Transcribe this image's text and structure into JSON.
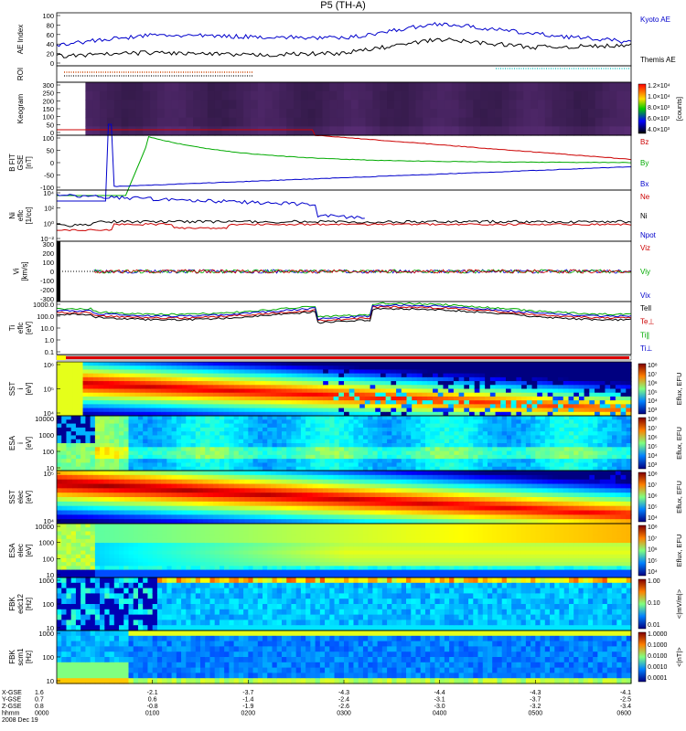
{
  "title": "P5 (TH-A)",
  "panels": [
    {
      "id": "ae",
      "ylabel": [
        "AE Index"
      ],
      "yticks": [
        "100",
        "80",
        "60",
        "40",
        "20",
        "0"
      ],
      "legend": [
        {
          "text": "Kyoto AE",
          "color": "#0000cc"
        },
        {
          "text": "Themis AE",
          "color": "#000000"
        }
      ]
    },
    {
      "id": "roi",
      "ylabel": [
        "ROI"
      ],
      "yticks": [],
      "legend": []
    },
    {
      "id": "keogram",
      "ylabel": [
        "Keogram"
      ],
      "yticks": [
        "300",
        "250",
        "200",
        "150",
        "100",
        "50",
        "0"
      ],
      "legend": []
    },
    {
      "id": "bfield",
      "ylabel": [
        "B FIT",
        "GSE",
        "[nT]"
      ],
      "yticks": [
        "100",
        "50",
        "0",
        "-50",
        "-100"
      ],
      "legend": [
        {
          "text": "Bz",
          "color": "#cc0000"
        },
        {
          "text": "By",
          "color": "#00aa00"
        },
        {
          "text": "Bx",
          "color": "#0000cc"
        }
      ]
    },
    {
      "id": "density",
      "ylabel": [
        "Ni",
        "eflc",
        "[1/cc]"
      ],
      "yticks": [
        "10⁴",
        "10²",
        "10⁰",
        "10⁻²"
      ],
      "legend": [
        {
          "text": "Ne",
          "color": "#cc0000"
        },
        {
          "text": "Ni",
          "color": "#000000"
        },
        {
          "text": "Npot",
          "color": "#0000cc"
        }
      ]
    },
    {
      "id": "velocity",
      "ylabel": [
        "Vi",
        "[km/s]"
      ],
      "yticks": [
        "300",
        "200",
        "100",
        "0",
        "-100",
        "-200",
        "-300"
      ],
      "legend": [
        {
          "text": "Viz",
          "color": "#cc0000"
        },
        {
          "text": "Viy",
          "color": "#00aa00"
        },
        {
          "text": "Vix",
          "color": "#0000cc"
        }
      ]
    },
    {
      "id": "temperature",
      "ylabel": [
        "Ti",
        "eflc",
        "[eV]"
      ],
      "yticks": [
        "1000.0",
        "100.0",
        "10.0",
        "1.0",
        "0.1"
      ],
      "legend": [
        {
          "text": "Tell",
          "color": "#000000"
        },
        {
          "text": "Te⊥",
          "color": "#cc0000"
        },
        {
          "text": "Ti∥",
          "color": "#00aa00"
        },
        {
          "text": "Ti⊥",
          "color": "#0000cc"
        }
      ]
    },
    {
      "id": "sst_ion",
      "ylabel": [
        "SST",
        "i",
        "[eV]"
      ],
      "yticks": [
        "10⁶",
        "10⁵",
        "10⁴"
      ],
      "legend": []
    },
    {
      "id": "esa_ion",
      "ylabel": [
        "ESA",
        "i",
        "[eV]"
      ],
      "yticks": [
        "10000",
        "1000",
        "100",
        "10"
      ],
      "legend": []
    },
    {
      "id": "sst_elec",
      "ylabel": [
        "SST",
        "elec",
        "[eV]"
      ],
      "yticks": [
        "10⁵",
        "10⁴"
      ],
      "legend": []
    },
    {
      "id": "esa_elec",
      "ylabel": [
        "ESA",
        "elec",
        "[eV]"
      ],
      "yticks": [
        "10000",
        "1000",
        "100",
        "10"
      ],
      "legend": []
    },
    {
      "id": "fbk_edc",
      "ylabel": [
        "FBK",
        "edc12",
        "[Hz]"
      ],
      "yticks": [
        "1000",
        "100",
        "10"
      ],
      "legend": []
    },
    {
      "id": "fbk_scm",
      "ylabel": [
        "FBK",
        "scm1",
        "[Hz]"
      ],
      "yticks": [
        "1000",
        "100",
        "10"
      ],
      "legend": []
    }
  ],
  "colorbars": [
    {
      "id": "keogram",
      "title": "[counts]",
      "ticks": [
        "1.2×10⁴",
        "1.0×10⁴",
        "8.0×10³",
        "6.0×10³",
        "4.0×10³"
      ]
    },
    {
      "id": "sst_ion",
      "title": "Eflux, EFU",
      "ticks": [
        "10⁸",
        "10⁷",
        "10⁶",
        "10⁵",
        "10⁴",
        "10³"
      ]
    },
    {
      "id": "esa_ion",
      "title": "Eflux, EFU",
      "ticks": [
        "10⁸",
        "10⁷",
        "10⁶",
        "10⁵",
        "10⁴",
        "10³"
      ]
    },
    {
      "id": "sst_elec",
      "title": "Eflux, EFU",
      "ticks": [
        "10⁸",
        "10⁷",
        "10⁶",
        "10⁵",
        "10⁴"
      ]
    },
    {
      "id": "esa_elec",
      "title": "Eflux, EFU",
      "ticks": [
        "10⁸",
        "10⁷",
        "10⁶",
        "10⁵",
        "10⁴"
      ]
    },
    {
      "id": "fbk_edc",
      "title": "<|mV/m|>",
      "ticks": [
        "1.00",
        "0.10",
        "0.01"
      ]
    },
    {
      "id": "fbk_scm",
      "title": "<|nT|>",
      "ticks": [
        "1.0000",
        "0.1000",
        "0.0100",
        "0.0010",
        "0.0001"
      ]
    }
  ],
  "xaxis": {
    "row_labels": [
      "X-GSE",
      "Y-GSE",
      "Z-GSE",
      "hhmm",
      "2008 Dec 19"
    ],
    "ticks": [
      {
        "time": "0000",
        "x": "1.6",
        "y": "0.7",
        "z": "0.8"
      },
      {
        "time": "0100",
        "x": "-2.1",
        "y": "0.6",
        "z": "-0.8"
      },
      {
        "time": "0200",
        "x": "-3.7",
        "y": "-1.4",
        "z": "-1.9"
      },
      {
        "time": "0300",
        "x": "-4.3",
        "y": "-2.4",
        "z": "-2.6"
      },
      {
        "time": "0400",
        "x": "-4.4",
        "y": "-3.1",
        "z": "-3.0"
      },
      {
        "time": "0500",
        "x": "-4.3",
        "y": "-3.7",
        "z": "-3.2"
      },
      {
        "time": "0600",
        "x": "-4.1",
        "y": "-2.5",
        "z": "-3.4"
      }
    ]
  },
  "chart_data": {
    "type": "line",
    "title": "P5 (TH-A)",
    "x": [
      "0000",
      "0100",
      "0200",
      "0300",
      "0400",
      "0500",
      "0600"
    ],
    "xlabel": "hhmm",
    "series": [
      {
        "name": "Kyoto AE",
        "values": [
          40,
          58,
          55,
          52,
          80,
          60,
          45
        ]
      },
      {
        "name": "Themis AE",
        "values": [
          18,
          25,
          20,
          24,
          50,
          35,
          38
        ]
      }
    ],
    "ylabel": "AE Index",
    "ylim": [
      0,
      100
    ]
  }
}
